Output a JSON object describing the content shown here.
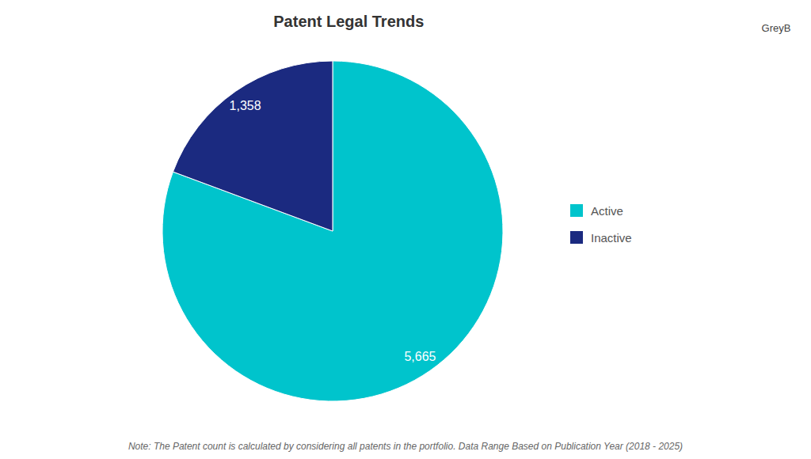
{
  "chart_data": {
    "type": "pie",
    "title": "Patent Legal Trends",
    "categories": [
      "Active",
      "Inactive"
    ],
    "values": [
      5665,
      1358
    ],
    "value_labels": [
      "5,665",
      "1,358"
    ],
    "colors": [
      "#00C4CC",
      "#1B2A80"
    ],
    "data_labels": true,
    "legend": "right",
    "annotations": [
      "Note: The Patent count is calculated by considering all patents in the portfolio. Data Range Based on Publication Year (2018 - 2025)",
      "GreyB"
    ]
  }
}
